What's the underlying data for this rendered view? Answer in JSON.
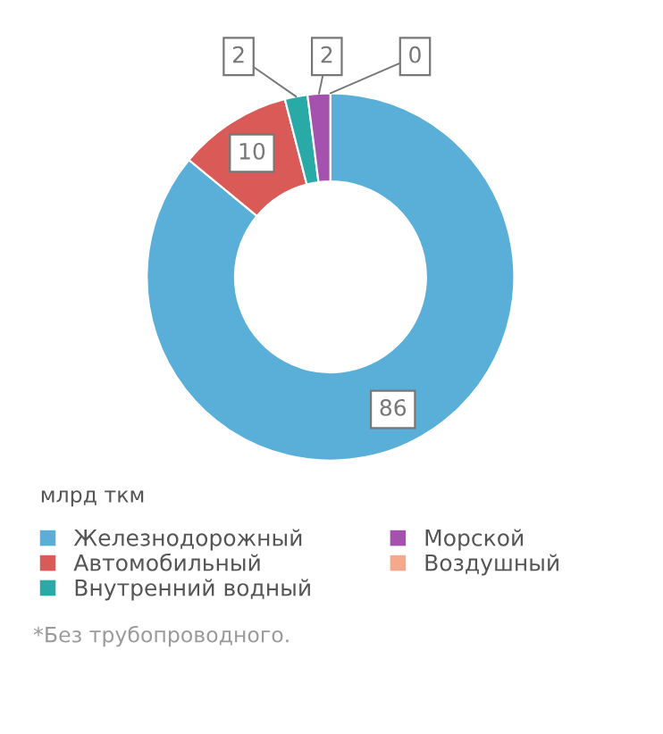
{
  "chart_data": {
    "type": "donut",
    "categories": [
      "Железнодорожный",
      "Автомобильный",
      "Внутренний водный",
      "Морской",
      "Воздушный"
    ],
    "values": [
      86,
      10,
      2,
      2,
      0
    ],
    "colors": [
      "#5aafd9",
      "#d95a57",
      "#2aaaa6",
      "#a452ad",
      "#f5a98a"
    ],
    "value_labels": [
      "86",
      "10",
      "2",
      "2",
      "0"
    ],
    "legend": "bottom",
    "legend_title": "млрд ткм",
    "annotations": [
      "*Без трубопроводного."
    ]
  }
}
